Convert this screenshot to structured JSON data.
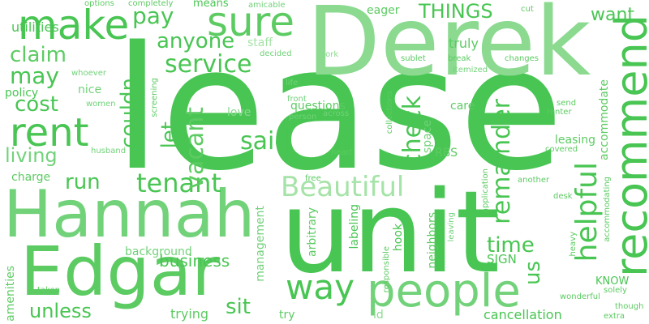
{
  "words": [
    "lease",
    "unit",
    "Derek",
    "Hannah",
    "Edgar",
    "rent",
    "recommend",
    "make",
    "sure",
    "people",
    "way",
    "Beautiful",
    "tenant",
    "said",
    "check",
    "service",
    "vacant",
    "helpful",
    "remainder",
    "pay",
    "claim",
    "may",
    "cost",
    "anyone",
    "living",
    "let",
    "couldn",
    "run",
    "us",
    "time",
    "sit",
    "THINGS",
    "want",
    "unless",
    "business",
    "trying",
    "cancellation",
    "KNOW",
    "SIGN",
    "utilities",
    "options",
    "completely",
    "means",
    "amicable",
    "eager",
    "cut",
    "staff",
    "decided",
    "work",
    "truly",
    "whoever",
    "nice",
    "women",
    "policy",
    "questions",
    "front",
    "person",
    "across",
    "care",
    "send",
    "renter",
    "life",
    "love",
    "screening",
    "collections",
    "space",
    "RBS",
    "accommodate",
    "leasing",
    "covered",
    "heart",
    "husband",
    "charge",
    "application",
    "free",
    "another",
    "desk",
    "accommodating",
    "management",
    "arbitrary",
    "labeling",
    "hook",
    "responsible",
    "neighbors",
    "leaving",
    "heavy",
    "amenities",
    "background",
    "taken",
    "try",
    "id",
    "wonderful",
    "solely",
    "though",
    "extra",
    "sublet",
    "break",
    "changes",
    "itemized",
    "weighed"
  ]
}
